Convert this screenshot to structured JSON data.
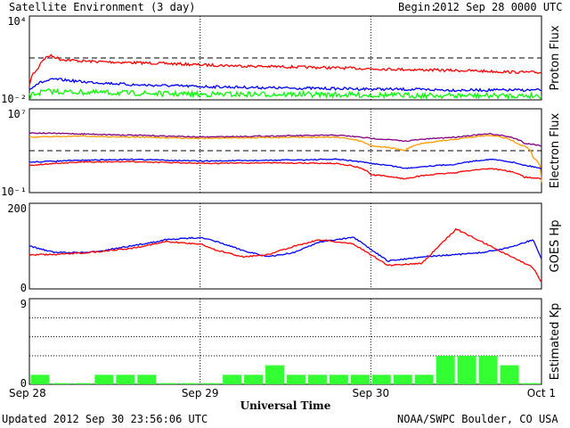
{
  "header": {
    "title": "Satellite Environment (3 day)",
    "begin_label": "Begin:",
    "begin_value": "2012 Sep 28 0000 UTC"
  },
  "footer": {
    "updated": "Updated 2012 Sep 30 23:56:06 UTC",
    "credit": "NOAA/SWPC Boulder, CO USA"
  },
  "colors": {
    "red": "#ff0000",
    "blue": "#0000ff",
    "green": "#00ff00",
    "purple": "#800080",
    "orange": "#ff9900",
    "kp_bar": "#33ff33"
  },
  "chart_data": [
    {
      "type": "line",
      "panel": "proton",
      "ylabel": "Proton Flux",
      "y_scale": "log",
      "ylim": [
        0.01,
        10000
      ],
      "y_tick_labels": [
        "10⁴",
        "10⁻²"
      ],
      "reference_line": 10,
      "x_unit": "day offset from Sep 28 0000 UTC",
      "series": [
        {
          "color": "red",
          "x": [
            0,
            0.05,
            0.12,
            0.18,
            0.3,
            0.5,
            0.8,
            1.0,
            1.3,
            1.6,
            2.0,
            2.3,
            2.6,
            2.8,
            3.0
          ],
          "y": [
            0.08,
            1.5,
            15,
            8,
            6,
            5,
            4,
            3.2,
            2.6,
            2.2,
            1.7,
            1.4,
            1.2,
            1.0,
            0.9
          ]
        },
        {
          "color": "blue",
          "x": [
            0,
            0.05,
            0.15,
            0.3,
            0.6,
            1.0,
            1.5,
            2.0,
            2.5,
            3.0
          ],
          "y": [
            0.05,
            0.15,
            0.3,
            0.2,
            0.12,
            0.09,
            0.07,
            0.06,
            0.05,
            0.05
          ]
        },
        {
          "color": "green",
          "x": [
            0,
            0.1,
            0.3,
            0.6,
            1.0,
            1.5,
            2.0,
            2.5,
            3.0
          ],
          "y": [
            0.02,
            0.04,
            0.035,
            0.03,
            0.025,
            0.025,
            0.022,
            0.02,
            0.02
          ]
        }
      ]
    },
    {
      "type": "line",
      "panel": "electron",
      "ylabel": "Electron Flux",
      "y_scale": "log",
      "ylim": [
        0.1,
        10000000
      ],
      "y_tick_labels": [
        "10⁷",
        "10⁻¹"
      ],
      "reference_line": 1000,
      "x_unit": "day offset from Sep 28 0000 UTC",
      "series": [
        {
          "color": "purple",
          "x": [
            0,
            0.3,
            0.6,
            1.0,
            1.4,
            1.8,
            2.0,
            2.2,
            2.5,
            2.7,
            2.9,
            3.0
          ],
          "y": [
            50000,
            40000,
            30000,
            20000,
            25000,
            30000,
            15000,
            8000,
            20000,
            40000,
            5000,
            3000
          ]
        },
        {
          "color": "orange",
          "x": [
            0,
            0.3,
            0.6,
            1.0,
            1.4,
            1.8,
            2.0,
            2.2,
            2.5,
            2.7,
            2.85,
            2.95,
            3.0
          ],
          "y": [
            20000,
            25000,
            20000,
            15000,
            18000,
            20000,
            3000,
            1000,
            12000,
            30000,
            5000,
            200,
            1
          ]
        },
        {
          "color": "blue",
          "x": [
            0,
            0.3,
            0.6,
            1.0,
            1.4,
            1.8,
            2.0,
            2.2,
            2.5,
            2.7,
            2.9,
            3.0
          ],
          "y": [
            80,
            120,
            150,
            100,
            120,
            150,
            60,
            20,
            50,
            150,
            40,
            20
          ]
        },
        {
          "color": "red",
          "x": [
            0,
            0.3,
            0.6,
            1.0,
            1.4,
            1.8,
            2.0,
            2.2,
            2.5,
            2.7,
            2.9,
            3.0
          ],
          "y": [
            40,
            80,
            90,
            60,
            70,
            60,
            5,
            2,
            8,
            20,
            3,
            2
          ]
        }
      ]
    },
    {
      "type": "line",
      "panel": "goes_hp",
      "ylabel": "GOES Hp",
      "ylim": [
        0,
        200
      ],
      "y_tick_labels": [
        "200",
        "0"
      ],
      "x_unit": "day offset from Sep 28 0000 UTC",
      "series": [
        {
          "color": "blue",
          "x": [
            0,
            0.15,
            0.35,
            0.6,
            0.8,
            1.0,
            1.1,
            1.25,
            1.4,
            1.55,
            1.7,
            1.9,
            2.1,
            2.3,
            2.5,
            2.65,
            2.8,
            2.95,
            3.0
          ],
          "y": [
            100,
            85,
            85,
            100,
            115,
            120,
            110,
            90,
            75,
            85,
            110,
            120,
            65,
            75,
            80,
            85,
            95,
            115,
            70
          ]
        },
        {
          "color": "red",
          "x": [
            0,
            0.15,
            0.35,
            0.6,
            0.8,
            1.0,
            1.1,
            1.25,
            1.4,
            1.55,
            1.7,
            1.9,
            2.1,
            2.3,
            2.5,
            2.65,
            2.8,
            2.95,
            3.0
          ],
          "y": [
            80,
            80,
            85,
            95,
            110,
            105,
            90,
            75,
            80,
            100,
            115,
            105,
            55,
            60,
            140,
            110,
            80,
            50,
            15
          ]
        }
      ]
    },
    {
      "type": "bar",
      "panel": "kp",
      "ylabel": "Estimated Kp",
      "ylim": [
        0,
        9
      ],
      "y_tick_labels": [
        "9",
        "0"
      ],
      "xlabel": "Universal Time",
      "x_tick_labels": [
        "Sep 28",
        "Sep 29",
        "Sep 30",
        "Oct 1"
      ],
      "values": [
        1,
        0,
        0,
        1,
        1,
        1,
        0,
        0,
        0,
        1,
        1,
        2,
        1,
        1,
        1,
        1,
        1,
        1,
        1,
        3,
        3,
        3,
        2,
        0
      ]
    }
  ]
}
